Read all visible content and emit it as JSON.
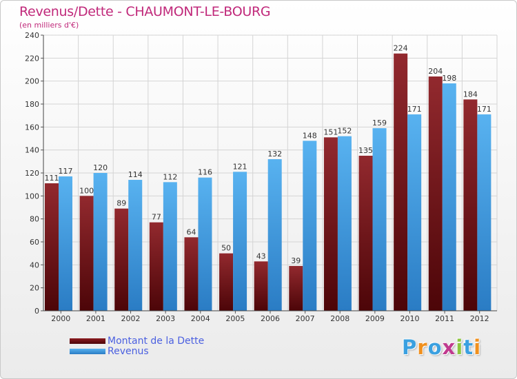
{
  "chart_data": {
    "type": "bar",
    "title": "Revenus/Dette - CHAUMONT-LE-BOURG",
    "subtitle": "(en milliers d'€)",
    "xlabel": "",
    "ylabel": "",
    "ylim": [
      0,
      240
    ],
    "yticks": [
      0,
      20,
      40,
      60,
      80,
      100,
      120,
      140,
      160,
      180,
      200,
      220,
      240
    ],
    "grid": true,
    "categories": [
      "2000",
      "2001",
      "2002",
      "2003",
      "2004",
      "2005",
      "2006",
      "2007",
      "2008",
      "2009",
      "2010",
      "2011",
      "2012"
    ],
    "series": [
      {
        "name": "Montant de la Dette",
        "color": "#8b1a1f",
        "values": [
          111,
          100,
          89,
          77,
          64,
          50,
          43,
          39,
          151,
          135,
          224,
          204,
          184
        ]
      },
      {
        "name": "Revenus",
        "color": "#4aa6e8",
        "values": [
          117,
          120,
          114,
          112,
          116,
          121,
          132,
          148,
          152,
          159,
          171,
          198,
          171
        ]
      }
    ],
    "legend": "bottom-left"
  },
  "legend_items": [
    {
      "label": "Montant de la Dette",
      "color": "#6e0a0e"
    },
    {
      "label": "Revenus",
      "color": "#4aa6e8"
    }
  ],
  "brand": {
    "letters": [
      "P",
      "r",
      "o",
      "x",
      "i",
      "t",
      "i"
    ],
    "colors": [
      "#3aa0e0",
      "#f0901e",
      "#3aa0e0",
      "#c03a8e",
      "#8cc63f",
      "#3aa0e0",
      "#f0901e"
    ]
  }
}
